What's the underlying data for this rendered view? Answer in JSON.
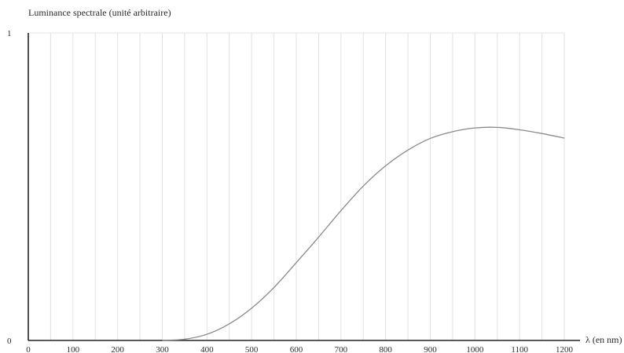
{
  "chart_data": {
    "type": "line",
    "title": "",
    "ylabel": "Luminance spectrale (unité arbitraire)",
    "xlabel": "λ (en nm)",
    "xlim": [
      0,
      1200
    ],
    "ylim": [
      0,
      1
    ],
    "x_ticks": [
      "0",
      "100",
      "200",
      "300",
      "400",
      "500",
      "600",
      "700",
      "800",
      "900",
      "1000",
      "1100",
      "1200"
    ],
    "y_ticks": [
      "0",
      "1"
    ],
    "vertical_grid_step": 50,
    "grid": true,
    "series": [
      {
        "color": "#8a8a8a",
        "x": [
          300,
          350,
          400,
          450,
          500,
          550,
          600,
          650,
          700,
          750,
          800,
          850,
          900,
          950,
          1000,
          1050,
          1100,
          1150,
          1200
        ],
        "y": [
          0.0,
          0.004,
          0.02,
          0.054,
          0.105,
          0.172,
          0.253,
          0.336,
          0.422,
          0.502,
          0.568,
          0.619,
          0.657,
          0.679,
          0.691,
          0.693,
          0.685,
          0.673,
          0.658
        ]
      }
    ]
  }
}
